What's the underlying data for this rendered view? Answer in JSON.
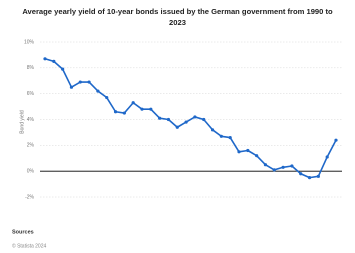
{
  "chart_data": {
    "type": "line",
    "title": "Average yearly yield of 10-year bonds issued by the German government from 1990 to 2023",
    "y_label": "Bond yield",
    "series": [
      {
        "name": "Bond yield",
        "color": "#1f68c9",
        "values": [
          8.7,
          8.5,
          7.9,
          6.5,
          6.9,
          6.9,
          6.2,
          5.7,
          4.6,
          4.5,
          5.3,
          4.8,
          4.8,
          4.1,
          4.0,
          3.4,
          3.8,
          4.2,
          4.0,
          3.2,
          2.7,
          2.6,
          1.5,
          1.6,
          1.2,
          0.5,
          0.1,
          0.3,
          0.4,
          -0.2,
          -0.5,
          -0.4,
          1.1,
          2.4
        ]
      }
    ],
    "ylim": [
      -2,
      10
    ],
    "yticks": [
      {
        "value": -2,
        "label": "-2%"
      },
      {
        "value": 0,
        "label": "0%"
      },
      {
        "value": 2,
        "label": "2%"
      },
      {
        "value": 4,
        "label": "4%"
      },
      {
        "value": 6,
        "label": "6%"
      },
      {
        "value": 8,
        "label": "8%"
      },
      {
        "value": 10,
        "label": "10%"
      }
    ],
    "grid": true,
    "source_title": "Sources",
    "source": "© Statista 2024"
  }
}
